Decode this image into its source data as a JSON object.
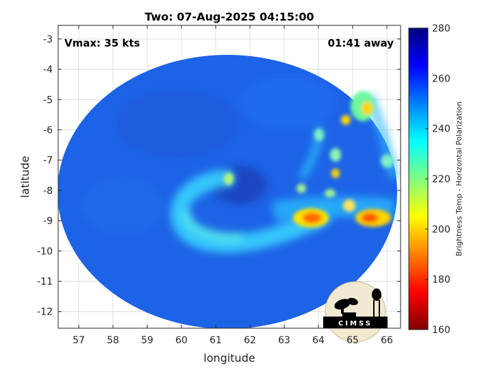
{
  "chart_data": {
    "type": "heatmap",
    "title": "Two: 07-Aug-2025 04:15:00",
    "xlabel": "longitude",
    "ylabel": "latitude",
    "xlim": [
      56.4,
      66.4
    ],
    "ylim": [
      -12.55,
      -2.55
    ],
    "x_ticks": [
      "57",
      "58",
      "59",
      "60",
      "61",
      "62",
      "63",
      "64",
      "65",
      "66"
    ],
    "y_ticks": [
      "-3",
      "-4",
      "-5",
      "-6",
      "-7",
      "-8",
      "-9",
      "-10",
      "-11",
      "-12"
    ],
    "grid": true,
    "colorbar": {
      "label": "Brightness Temp - Horizontal Polarization",
      "range": [
        160,
        280
      ],
      "ticks": [
        "280",
        "260",
        "240",
        "220",
        "200",
        "180",
        "160"
      ],
      "colormap": "jet"
    },
    "annotations": {
      "vmax": "Vmax: 35 kts",
      "time_away": "01:41 away"
    },
    "field_description": {
      "background_k": 262,
      "swath_center": [
        61.5,
        -7.6
      ],
      "features": [
        {
          "kind": "curved_band",
          "approx_k": 238
        },
        {
          "kind": "convection",
          "lon": 63.9,
          "lat": -8.9,
          "approx_k": 198
        },
        {
          "kind": "convection",
          "lon": 65.6,
          "lat": -8.9,
          "approx_k": 198
        },
        {
          "kind": "convection",
          "lon": 65.5,
          "lat": -5.2,
          "approx_k": 210
        },
        {
          "kind": "convection",
          "lon": 61.4,
          "lat": -7.6,
          "approx_k": 225
        }
      ]
    }
  },
  "logo": {
    "text": "CIMSS"
  }
}
